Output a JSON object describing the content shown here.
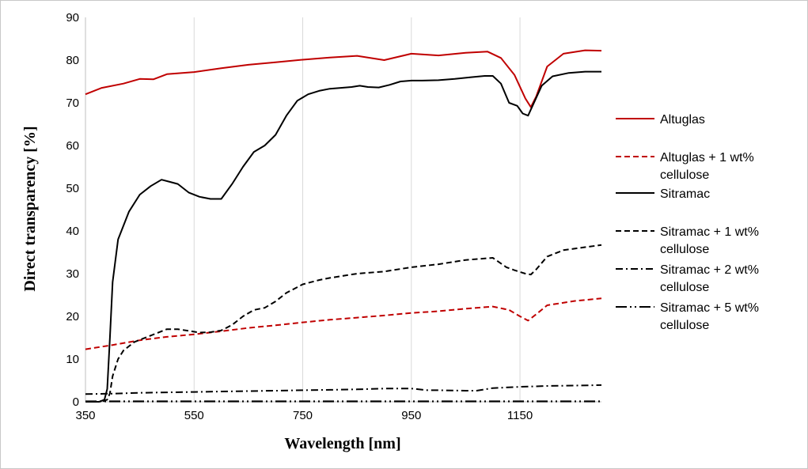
{
  "chart_data": {
    "type": "line",
    "xlabel": "Wavelength [nm]",
    "ylabel": "Direct transparency  [%]",
    "xlim": [
      350,
      1300
    ],
    "ylim": [
      0,
      90
    ],
    "x_ticks": [
      350,
      550,
      750,
      950,
      1150
    ],
    "y_ticks": [
      0,
      10,
      20,
      30,
      40,
      50,
      60,
      70,
      80,
      90
    ],
    "grid": "vertical",
    "legend_position": "right",
    "series": [
      {
        "name": "Altuglas",
        "color": "#c00000",
        "dash": "solid",
        "x": [
          350,
          380,
          420,
          450,
          475,
          500,
          550,
          600,
          650,
          700,
          750,
          800,
          850,
          900,
          950,
          1000,
          1050,
          1090,
          1115,
          1140,
          1160,
          1170,
          1180,
          1200,
          1230,
          1270,
          1300
        ],
        "y": [
          72,
          73.5,
          74.5,
          75.6,
          75.5,
          76.7,
          77.2,
          78.1,
          78.9,
          79.5,
          80.1,
          80.6,
          81.0,
          80.0,
          81.5,
          81.1,
          81.7,
          82.0,
          80.5,
          76.5,
          71.0,
          69.0,
          71.5,
          78.5,
          81.5,
          82.3,
          82.2
        ]
      },
      {
        "name": "Altuglas + 1 wt% cellulose",
        "color": "#c00000",
        "dash": "dashed",
        "x": [
          350,
          400,
          450,
          500,
          550,
          600,
          650,
          700,
          750,
          800,
          850,
          900,
          950,
          1000,
          1050,
          1100,
          1130,
          1150,
          1165,
          1180,
          1200,
          1250,
          1300
        ],
        "y": [
          12.3,
          13.3,
          14.4,
          15.2,
          15.8,
          16.5,
          17.3,
          17.9,
          18.6,
          19.2,
          19.7,
          20.2,
          20.8,
          21.2,
          21.8,
          22.3,
          21.5,
          20.0,
          19.0,
          20.5,
          22.6,
          23.6,
          24.2
        ]
      },
      {
        "name": "Sitramac",
        "color": "#000000",
        "dash": "solid",
        "x": [
          350,
          375,
          385,
          390,
          395,
          400,
          410,
          430,
          450,
          470,
          490,
          505,
          520,
          540,
          560,
          580,
          600,
          620,
          640,
          660,
          680,
          700,
          720,
          740,
          760,
          780,
          800,
          820,
          840,
          855,
          870,
          890,
          910,
          930,
          950,
          970,
          1000,
          1030,
          1060,
          1085,
          1100,
          1115,
          1130,
          1145,
          1155,
          1165,
          1175,
          1190,
          1210,
          1240,
          1270,
          1300
        ],
        "y": [
          0,
          0,
          0.5,
          3,
          15,
          28,
          38,
          44.5,
          48.5,
          50.5,
          52,
          51.5,
          51,
          49,
          48,
          47.5,
          47.5,
          51,
          55,
          58.5,
          60,
          62.5,
          67,
          70.5,
          72,
          72.8,
          73.3,
          73.5,
          73.7,
          74,
          73.7,
          73.6,
          74.2,
          75,
          75.2,
          75.2,
          75.3,
          75.6,
          76.0,
          76.3,
          76.3,
          74.5,
          70.0,
          69.3,
          67.5,
          67.0,
          69.8,
          74.0,
          76.2,
          77.0,
          77.3,
          77.3
        ]
      },
      {
        "name": "Sitramac + 1 wt% cellulose",
        "color": "#000000",
        "dash": "dashed",
        "x": [
          350,
          380,
          390,
          395,
          400,
          410,
          420,
          440,
          470,
          500,
          520,
          545,
          560,
          580,
          600,
          620,
          640,
          660,
          680,
          700,
          720,
          750,
          780,
          800,
          850,
          900,
          950,
          1000,
          1050,
          1100,
          1125,
          1140,
          1160,
          1170,
          1180,
          1200,
          1230,
          1270,
          1300
        ],
        "y": [
          0,
          0,
          0.5,
          2,
          6,
          10,
          12,
          14,
          15.5,
          17,
          17,
          16.5,
          16.2,
          16.3,
          16.7,
          18,
          20,
          21.5,
          22,
          23.5,
          25.5,
          27.5,
          28.5,
          29.0,
          30,
          30.5,
          31.5,
          32.2,
          33.2,
          33.7,
          31.5,
          30.8,
          30.0,
          29.8,
          31.0,
          34.0,
          35.5,
          36.2,
          36.7
        ]
      },
      {
        "name": "Sitramac + 2 wt% cellulose",
        "color": "#000000",
        "dash": "dashdot",
        "x": [
          350,
          400,
          450,
          500,
          550,
          600,
          650,
          700,
          750,
          800,
          850,
          900,
          950,
          980,
          1000,
          1050,
          1070,
          1100,
          1150,
          1200,
          1250,
          1300
        ],
        "y": [
          1.8,
          1.9,
          2.1,
          2.2,
          2.3,
          2.4,
          2.5,
          2.6,
          2.7,
          2.8,
          2.9,
          3.1,
          3.1,
          2.7,
          2.7,
          2.6,
          2.6,
          3.2,
          3.5,
          3.7,
          3.8,
          3.9
        ]
      },
      {
        "name": "Sitramac + 5 wt% cellulose",
        "color": "#000000",
        "dash": "dashdotdot",
        "x": [
          350,
          1300
        ],
        "y": [
          0.1,
          0.1
        ]
      }
    ]
  }
}
